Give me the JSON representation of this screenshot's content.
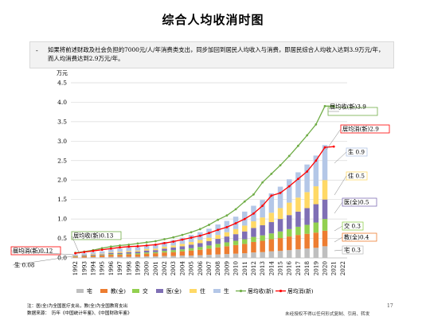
{
  "page": {
    "title": "综合人均收消时图",
    "bullet": "如果将前述财政及社会负担的7000元/人/年消费类支出，同步加回到居民人均收入与消费，即居民综合人均收入达到3.9万元/年，而人均消费达到2.9万元/年。",
    "footnote1": "注：医(全)为全国医疗支出，教(全)为全国教育支出",
    "footnote2": "数据来源：　历年《中国统计年鉴》、《中国财政年鉴》",
    "page_number": "17",
    "disclaimer": "未经授权不得以任何形式复制、引用、转发"
  },
  "chart_data": {
    "type": "bar",
    "stacked": true,
    "ylabel": "万元",
    "ylim": [
      0,
      4.5
    ],
    "yticks": [
      0.0,
      0.5,
      1.0,
      1.5,
      2.0,
      2.5,
      3.0,
      3.5,
      4.0,
      4.5
    ],
    "categories": [
      "1992",
      "1993",
      "1994",
      "1995",
      "1996",
      "1997",
      "1998",
      "1999",
      "2000",
      "2001",
      "2002",
      "2003",
      "2004",
      "2005",
      "2006",
      "2007",
      "2008",
      "2009",
      "2010",
      "2011",
      "2012",
      "2013",
      "2014",
      "2015",
      "2016",
      "2017",
      "2018",
      "2019",
      "2020",
      "2021",
      "2022"
    ],
    "series": [
      {
        "name": "宅",
        "color": "#bfbfbf",
        "values": [
          0.01,
          0.01,
          0.02,
          0.02,
          0.03,
          0.03,
          0.03,
          0.03,
          0.04,
          0.04,
          0.05,
          0.05,
          0.06,
          0.06,
          0.07,
          0.08,
          0.09,
          0.1,
          0.11,
          0.12,
          0.14,
          0.15,
          0.17,
          0.18,
          0.2,
          0.22,
          0.24,
          0.26,
          0.3,
          null,
          null
        ]
      },
      {
        "name": "教(全)",
        "color": "#ed7d31",
        "values": [
          0.02,
          0.03,
          0.03,
          0.04,
          0.05,
          0.05,
          0.06,
          0.06,
          0.07,
          0.08,
          0.09,
          0.1,
          0.11,
          0.13,
          0.14,
          0.16,
          0.18,
          0.2,
          0.22,
          0.24,
          0.27,
          0.29,
          0.31,
          0.33,
          0.35,
          0.37,
          0.38,
          0.39,
          0.4,
          null,
          null
        ]
      },
      {
        "name": "交",
        "color": "#92d050",
        "values": [
          0.01,
          0.01,
          0.01,
          0.01,
          0.02,
          0.02,
          0.02,
          0.03,
          0.03,
          0.03,
          0.04,
          0.05,
          0.05,
          0.06,
          0.07,
          0.08,
          0.09,
          0.1,
          0.11,
          0.12,
          0.13,
          0.14,
          0.15,
          0.17,
          0.19,
          0.21,
          0.23,
          0.26,
          0.3,
          null,
          null
        ]
      },
      {
        "name": "医(全)",
        "color": "#7f6fb5",
        "values": [
          0.01,
          0.02,
          0.02,
          0.02,
          0.03,
          0.03,
          0.04,
          0.04,
          0.05,
          0.05,
          0.06,
          0.07,
          0.08,
          0.09,
          0.1,
          0.11,
          0.13,
          0.15,
          0.17,
          0.2,
          0.23,
          0.26,
          0.29,
          0.32,
          0.36,
          0.39,
          0.43,
          0.47,
          0.5,
          null,
          null
        ]
      },
      {
        "name": "住",
        "color": "#ffd966",
        "values": [
          0.01,
          0.01,
          0.02,
          0.02,
          0.02,
          0.03,
          0.03,
          0.03,
          0.04,
          0.04,
          0.05,
          0.05,
          0.06,
          0.07,
          0.08,
          0.09,
          0.1,
          0.11,
          0.13,
          0.15,
          0.17,
          0.2,
          0.24,
          0.28,
          0.32,
          0.36,
          0.41,
          0.46,
          0.5,
          null,
          null
        ]
      },
      {
        "name": "生",
        "color": "#b4c7e7",
        "values": [
          0.03,
          0.04,
          0.05,
          0.06,
          0.07,
          0.08,
          0.09,
          0.09,
          0.1,
          0.11,
          0.12,
          0.14,
          0.16,
          0.18,
          0.2,
          0.23,
          0.27,
          0.29,
          0.32,
          0.36,
          0.4,
          0.45,
          0.5,
          0.55,
          0.6,
          0.65,
          0.71,
          0.79,
          0.9,
          null,
          null
        ]
      }
    ],
    "lines": [
      {
        "name": "居均收(新)",
        "color": "#70ad47",
        "values": [
          0.13,
          0.16,
          0.2,
          0.25,
          0.29,
          0.32,
          0.34,
          0.37,
          0.4,
          0.43,
          0.48,
          0.53,
          0.59,
          0.66,
          0.74,
          0.85,
          0.98,
          1.09,
          1.25,
          1.45,
          1.63,
          1.94,
          2.16,
          2.38,
          2.62,
          2.88,
          3.15,
          3.43,
          3.9,
          3.9,
          null
        ]
      },
      {
        "name": "居均消(新)",
        "color": "#ff0000",
        "values": [
          0.12,
          0.15,
          0.18,
          0.21,
          0.24,
          0.27,
          0.29,
          0.3,
          0.32,
          0.34,
          0.38,
          0.42,
          0.47,
          0.52,
          0.57,
          0.64,
          0.72,
          0.79,
          0.89,
          1.0,
          1.14,
          1.34,
          1.6,
          1.67,
          1.84,
          2.03,
          2.22,
          2.5,
          2.84,
          2.86,
          null
        ]
      }
    ],
    "annotations": [
      {
        "text": "居均收(新)3.9"
      },
      {
        "text": "居均消(新)2.9"
      },
      {
        "text": "生 0.9"
      },
      {
        "text": "住 0.5"
      },
      {
        "text": "医(全)0.5"
      },
      {
        "text": "交 0.3"
      },
      {
        "text": "教(全)0.4"
      },
      {
        "text": "宅 0.3"
      },
      {
        "text": "居均收(新)0.13"
      },
      {
        "text": "居均消(新)0.12"
      },
      {
        "text": "生 0.08"
      }
    ],
    "legend": [
      "宅",
      "教(全)",
      "交",
      "医(全)",
      "住",
      "生",
      "居均收(新)",
      "居均消(新)"
    ],
    "grid": true
  }
}
